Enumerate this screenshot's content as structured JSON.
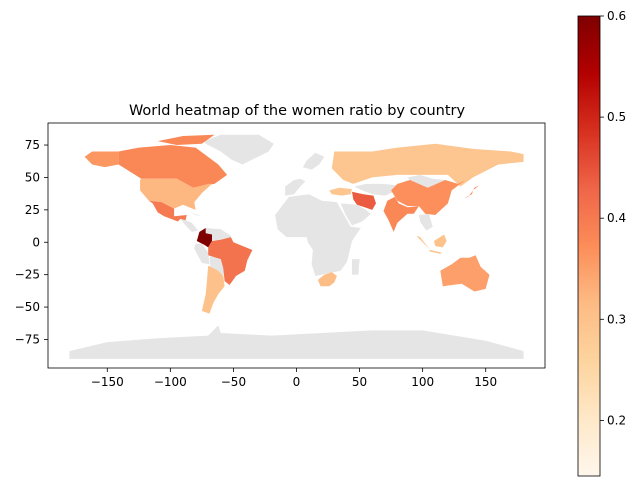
{
  "chart_data": {
    "type": "heatmap",
    "title": "World heatmap of the women ratio by country",
    "xlabel": "",
    "ylabel": "",
    "xlim": [
      -197,
      197
    ],
    "ylim": [
      -97,
      92
    ],
    "x_ticks": [
      -150,
      -100,
      -50,
      0,
      50,
      100,
      150
    ],
    "x_tick_labels": [
      "−150",
      "−100",
      "−50",
      "0",
      "50",
      "100",
      "150"
    ],
    "y_ticks": [
      75,
      50,
      25,
      0,
      -25,
      -50,
      -75
    ],
    "y_tick_labels": [
      "75",
      "50",
      "25",
      "0",
      "−25",
      "−50",
      "−75"
    ],
    "colorbar": {
      "colormap": "OrRd",
      "range": [
        0.145,
        0.6
      ],
      "ticks": [
        0.6,
        0.5,
        0.4,
        0.3,
        0.2
      ],
      "tick_labels": [
        "0.6",
        "0.5",
        "0.4",
        "0.3",
        "0.2"
      ]
    },
    "missing_color": "#e5e5e5",
    "grid": false,
    "regions": [
      {
        "name": "Canada",
        "value": 0.38
      },
      {
        "name": "Alaska",
        "value": 0.36
      },
      {
        "name": "United States",
        "value": 0.32
      },
      {
        "name": "Mexico",
        "value": 0.4
      },
      {
        "name": "Colombia",
        "value": 0.6
      },
      {
        "name": "Brazil",
        "value": 0.41
      },
      {
        "name": "Chile/Argentina",
        "value": 0.3
      },
      {
        "name": "Russia",
        "value": 0.29
      },
      {
        "name": "China",
        "value": 0.37
      },
      {
        "name": "India",
        "value": 0.38
      },
      {
        "name": "Iran",
        "value": 0.44
      },
      {
        "name": "Australia",
        "value": 0.35
      },
      {
        "name": "South Africa",
        "value": 0.31
      },
      {
        "name": "Indonesia",
        "value": 0.3
      },
      {
        "name": "Japan",
        "value": 0.39
      },
      {
        "name": "Turkey",
        "value": 0.29
      }
    ]
  }
}
